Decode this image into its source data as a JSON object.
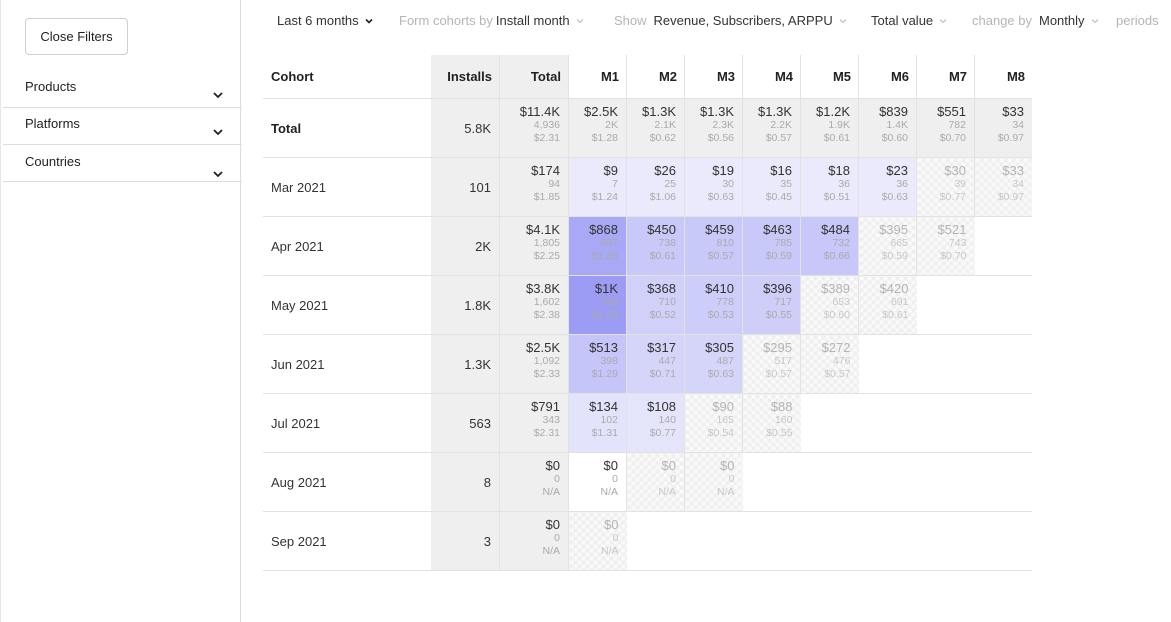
{
  "sidebar": {
    "close_label": "Close Filters",
    "filters": [
      {
        "label": "Products"
      },
      {
        "label": "Platforms"
      },
      {
        "label": "Countries"
      }
    ]
  },
  "toolbar": {
    "period": "Last 6 months",
    "form_by_label": "Form cohorts by",
    "form_by_value": "Install month",
    "show_label": "Show",
    "show_value": "Revenue, Subscribers, ARPPU",
    "value_mode": "Total value",
    "change_by_label": "change by",
    "change_by_value": "Monthly",
    "periods_label": "periods"
  },
  "colors": {
    "heat_max": "#9c9cf5",
    "heat_min": "#eeeefc",
    "fixed_col_bg": "#efefef"
  },
  "table": {
    "headers": {
      "cohort": "Cohort",
      "installs": "Installs",
      "total": "Total",
      "months": [
        "M1",
        "M2",
        "M3",
        "M4",
        "M5",
        "M6",
        "M7",
        "M8"
      ]
    },
    "rows": [
      {
        "cohort": "Total",
        "installs": "5.8K",
        "total": {
          "rev": "$11.4K",
          "subs": "4,936",
          "arppu": "$2.31"
        },
        "months": [
          {
            "rev": "$2.5K",
            "subs": "2K",
            "arppu": "$1.28"
          },
          {
            "rev": "$1.3K",
            "subs": "2.1K",
            "arppu": "$0.62"
          },
          {
            "rev": "$1.3K",
            "subs": "2.3K",
            "arppu": "$0.56"
          },
          {
            "rev": "$1.3K",
            "subs": "2.2K",
            "arppu": "$0.57"
          },
          {
            "rev": "$1.2K",
            "subs": "1.9K",
            "arppu": "$0.61"
          },
          {
            "rev": "$839",
            "subs": "1.4K",
            "arppu": "$0.60"
          },
          {
            "rev": "$551",
            "subs": "782",
            "arppu": "$0.70"
          },
          {
            "rev": "$33",
            "subs": "34",
            "arppu": "$0.97"
          }
        ]
      },
      {
        "cohort": "Mar 2021",
        "installs": "101",
        "total": {
          "rev": "$174",
          "subs": "94",
          "arppu": "$1.85"
        },
        "months": [
          {
            "rev": "$9",
            "subs": "7",
            "arppu": "$1.24",
            "shade": 0.05
          },
          {
            "rev": "$26",
            "subs": "25",
            "arppu": "$1.06",
            "shade": 0.05
          },
          {
            "rev": "$19",
            "subs": "30",
            "arppu": "$0.63",
            "shade": 0.05
          },
          {
            "rev": "$16",
            "subs": "35",
            "arppu": "$0.45",
            "shade": 0.05
          },
          {
            "rev": "$18",
            "subs": "36",
            "arppu": "$0.51",
            "shade": 0.05
          },
          {
            "rev": "$23",
            "subs": "36",
            "arppu": "$0.63",
            "shade": 0.05
          },
          {
            "rev": "$30",
            "subs": "39",
            "arppu": "$0.77",
            "projected": true
          },
          {
            "rev": "$33",
            "subs": "34",
            "arppu": "$0.97",
            "projected": true
          }
        ]
      },
      {
        "cohort": "Apr 2021",
        "installs": "2K",
        "total": {
          "rev": "$4.1K",
          "subs": "1,805",
          "arppu": "$2.25"
        },
        "months": [
          {
            "rev": "$868",
            "subs": "687",
            "arppu": "$1.26",
            "shade": 0.85
          },
          {
            "rev": "$450",
            "subs": "738",
            "arppu": "$0.61",
            "shade": 0.45
          },
          {
            "rev": "$459",
            "subs": "810",
            "arppu": "$0.57",
            "shade": 0.45
          },
          {
            "rev": "$463",
            "subs": "785",
            "arppu": "$0.59",
            "shade": 0.45
          },
          {
            "rev": "$484",
            "subs": "732",
            "arppu": "$0.66",
            "shade": 0.47
          },
          {
            "rev": "$395",
            "subs": "665",
            "arppu": "$0.59",
            "projected": true
          },
          {
            "rev": "$521",
            "subs": "743",
            "arppu": "$0.70",
            "projected": true
          }
        ]
      },
      {
        "cohort": "May 2021",
        "installs": "1.8K",
        "total": {
          "rev": "$3.8K",
          "subs": "1,602",
          "arppu": "$2.38"
        },
        "months": [
          {
            "rev": "$1K",
            "subs": "788",
            "arppu": "$1.29",
            "shade": 1.0
          },
          {
            "rev": "$368",
            "subs": "710",
            "arppu": "$0.52",
            "shade": 0.36
          },
          {
            "rev": "$410",
            "subs": "778",
            "arppu": "$0.53",
            "shade": 0.4
          },
          {
            "rev": "$396",
            "subs": "717",
            "arppu": "$0.55",
            "shade": 0.39
          },
          {
            "rev": "$389",
            "subs": "653",
            "arppu": "$0.60",
            "projected": true
          },
          {
            "rev": "$420",
            "subs": "691",
            "arppu": "$0.61",
            "projected": true
          }
        ]
      },
      {
        "cohort": "Jun 2021",
        "installs": "1.3K",
        "total": {
          "rev": "$2.5K",
          "subs": "1,092",
          "arppu": "$2.33"
        },
        "months": [
          {
            "rev": "$513",
            "subs": "398",
            "arppu": "$1.29",
            "shade": 0.5
          },
          {
            "rev": "$317",
            "subs": "447",
            "arppu": "$0.71",
            "shade": 0.31
          },
          {
            "rev": "$305",
            "subs": "487",
            "arppu": "$0.63",
            "shade": 0.3
          },
          {
            "rev": "$295",
            "subs": "517",
            "arppu": "$0.57",
            "projected": true
          },
          {
            "rev": "$272",
            "subs": "476",
            "arppu": "$0.57",
            "projected": true
          }
        ]
      },
      {
        "cohort": "Jul 2021",
        "installs": "563",
        "total": {
          "rev": "$791",
          "subs": "343",
          "arppu": "$2.31"
        },
        "months": [
          {
            "rev": "$134",
            "subs": "102",
            "arppu": "$1.31",
            "shade": 0.14
          },
          {
            "rev": "$108",
            "subs": "140",
            "arppu": "$0.77",
            "shade": 0.12
          },
          {
            "rev": "$90",
            "subs": "165",
            "arppu": "$0.54",
            "projected": true
          },
          {
            "rev": "$88",
            "subs": "160",
            "arppu": "$0.55",
            "projected": true
          }
        ]
      },
      {
        "cohort": "Aug 2021",
        "installs": "8",
        "total": {
          "rev": "$0",
          "subs": "0",
          "arppu": "N/A"
        },
        "months": [
          {
            "rev": "$0",
            "subs": "0",
            "arppu": "N/A",
            "shade": 0
          },
          {
            "rev": "$0",
            "subs": "0",
            "arppu": "N/A",
            "projected": true
          },
          {
            "rev": "$0",
            "subs": "0",
            "arppu": "N/A",
            "projected": true
          }
        ]
      },
      {
        "cohort": "Sep 2021",
        "installs": "3",
        "total": {
          "rev": "$0",
          "subs": "0",
          "arppu": "N/A"
        },
        "months": [
          {
            "rev": "$0",
            "subs": "0",
            "arppu": "N/A",
            "projected": true
          }
        ]
      }
    ]
  }
}
